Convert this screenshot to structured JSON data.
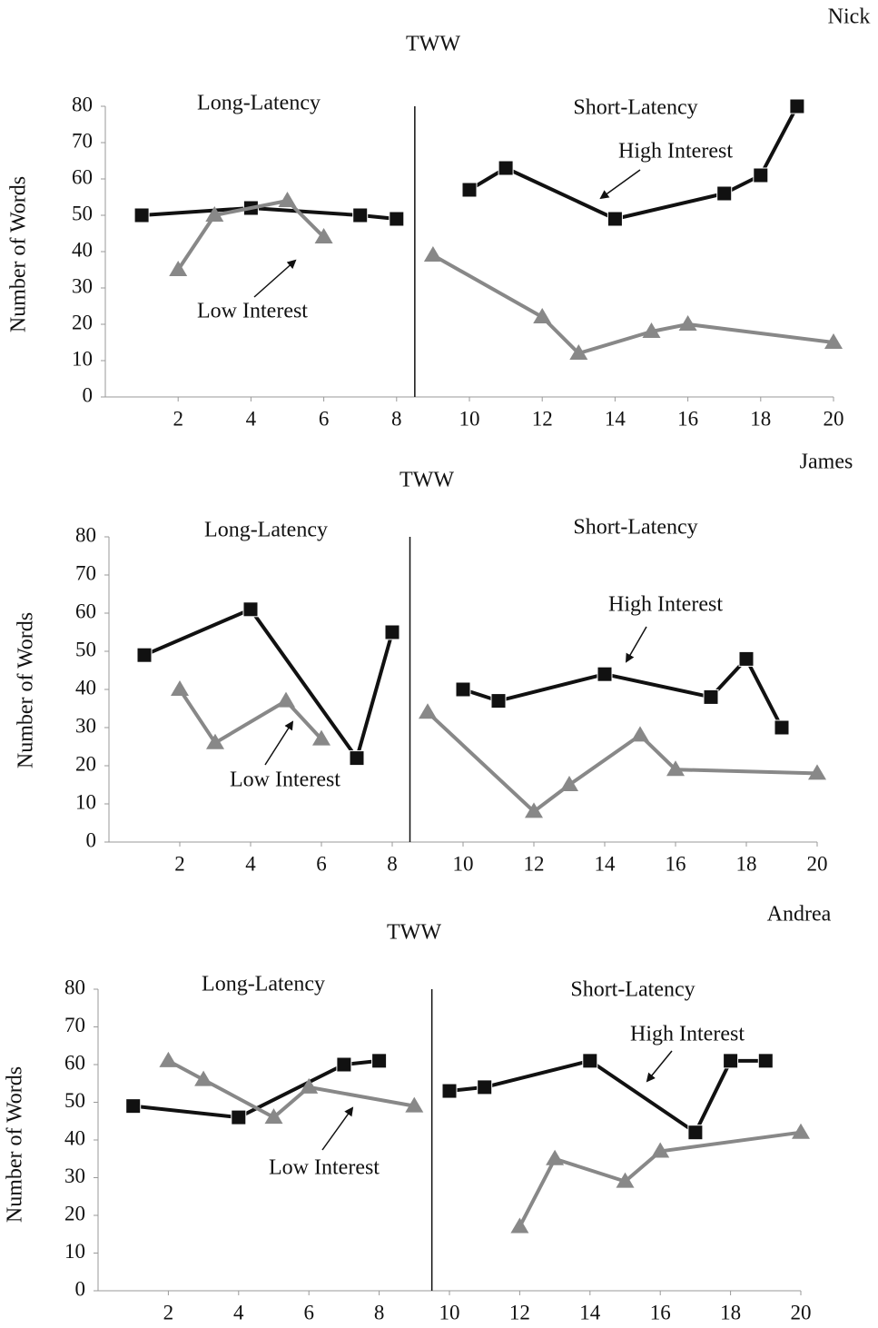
{
  "chart_data": [
    {
      "type": "line",
      "participant": "Nick",
      "title": "TWW",
      "ylabel": "Number of Words",
      "phase_labels": [
        "Long-Latency",
        "Short-Latency"
      ],
      "phase_change_x": 8.5,
      "xlim": [
        0,
        20
      ],
      "xticks": [
        2,
        4,
        6,
        8,
        10,
        12,
        14,
        16,
        18,
        20
      ],
      "ylim": [
        0,
        80
      ],
      "yticks": [
        0,
        10,
        20,
        30,
        40,
        50,
        60,
        70,
        80
      ],
      "series": [
        {
          "name": "High Interest",
          "color": "#111111",
          "marker": "square",
          "x": [
            1,
            4,
            7,
            8,
            10,
            11,
            14,
            17,
            18,
            19
          ],
          "values": [
            50,
            52,
            50,
            49,
            57,
            63,
            49,
            56,
            61,
            80
          ]
        },
        {
          "name": "Low Interest",
          "color": "#888888",
          "marker": "triangle",
          "x": [
            2,
            3,
            5,
            6,
            9,
            12,
            13,
            15,
            16,
            20
          ],
          "values": [
            35,
            50,
            54,
            44,
            39,
            22,
            12,
            18,
            20,
            15
          ]
        }
      ]
    },
    {
      "type": "line",
      "participant": "James",
      "title": "TWW",
      "ylabel": "Number of Words",
      "phase_labels": [
        "Long-Latency",
        "Short-Latency"
      ],
      "phase_change_x": 8.5,
      "xlim": [
        0,
        20
      ],
      "xticks": [
        2,
        4,
        6,
        8,
        10,
        12,
        14,
        16,
        18,
        20
      ],
      "ylim": [
        0,
        80
      ],
      "yticks": [
        0,
        10,
        20,
        30,
        40,
        50,
        60,
        70,
        80
      ],
      "series": [
        {
          "name": "High Interest",
          "color": "#111111",
          "marker": "square",
          "x": [
            1,
            4,
            7,
            8,
            10,
            11,
            14,
            17,
            18,
            19
          ],
          "values": [
            49,
            61,
            22,
            55,
            40,
            37,
            44,
            38,
            48,
            30
          ]
        },
        {
          "name": "Low Interest",
          "color": "#888888",
          "marker": "triangle",
          "x": [
            2,
            3,
            5,
            6,
            9,
            12,
            13,
            15,
            16,
            20
          ],
          "values": [
            40,
            26,
            37,
            27,
            34,
            8,
            15,
            28,
            19,
            18
          ]
        }
      ]
    },
    {
      "type": "line",
      "participant": "Andrea",
      "title": "TWW",
      "ylabel": "Number of Words",
      "phase_labels": [
        "Long-Latency",
        "Short-Latency"
      ],
      "phase_change_x": 9.5,
      "xlim": [
        0,
        20
      ],
      "xticks": [
        2,
        4,
        6,
        8,
        10,
        12,
        14,
        16,
        18,
        20
      ],
      "ylim": [
        0,
        80
      ],
      "yticks": [
        0,
        10,
        20,
        30,
        40,
        50,
        60,
        70,
        80
      ],
      "series": [
        {
          "name": "High Interest",
          "color": "#111111",
          "marker": "square",
          "x": [
            1,
            4,
            7,
            8,
            10,
            11,
            14,
            17,
            18,
            19
          ],
          "values": [
            49,
            46,
            60,
            61,
            53,
            54,
            61,
            42,
            61,
            61
          ]
        },
        {
          "name": "Low Interest",
          "color": "#888888",
          "marker": "triangle",
          "x": [
            2,
            3,
            5,
            6,
            9,
            12,
            13,
            15,
            16,
            20
          ],
          "values": [
            61,
            56,
            46,
            54,
            49,
            17,
            35,
            29,
            37,
            42
          ]
        }
      ]
    }
  ]
}
